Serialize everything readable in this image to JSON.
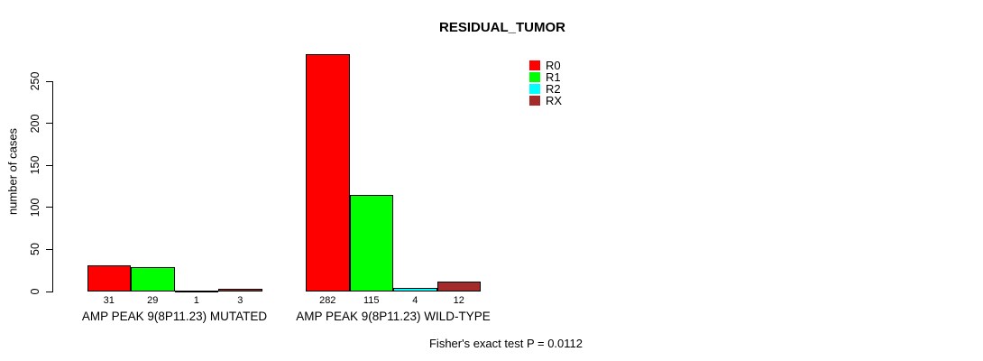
{
  "title": "RESIDUAL_TUMOR",
  "y_axis": {
    "label": "number of cases"
  },
  "footer": "Fisher's exact test P = 0.0112",
  "chart_data": {
    "type": "bar",
    "title": "RESIDUAL_TUMOR",
    "xlabel": "",
    "ylabel": "number of cases",
    "categories": [
      "AMP PEAK 9(8P11.23) MUTATED",
      "AMP PEAK 9(8P11.23) WILD-TYPE"
    ],
    "series": [
      {
        "name": "R0",
        "color": "#FF0000",
        "values": [
          31,
          282
        ]
      },
      {
        "name": "R1",
        "color": "#00FF00",
        "values": [
          29,
          115
        ]
      },
      {
        "name": "R2",
        "color": "#00FFFF",
        "values": [
          1,
          4
        ]
      },
      {
        "name": "RX",
        "color": "#A52A2A",
        "values": [
          3,
          12
        ]
      }
    ],
    "yticks": [
      0,
      50,
      100,
      150,
      200,
      250
    ],
    "ylim": [
      0,
      290
    ],
    "grid": false,
    "legend_position": "top-right-inside",
    "bar_value_labels": true,
    "annotation": "Fisher's exact test P = 0.0112"
  }
}
